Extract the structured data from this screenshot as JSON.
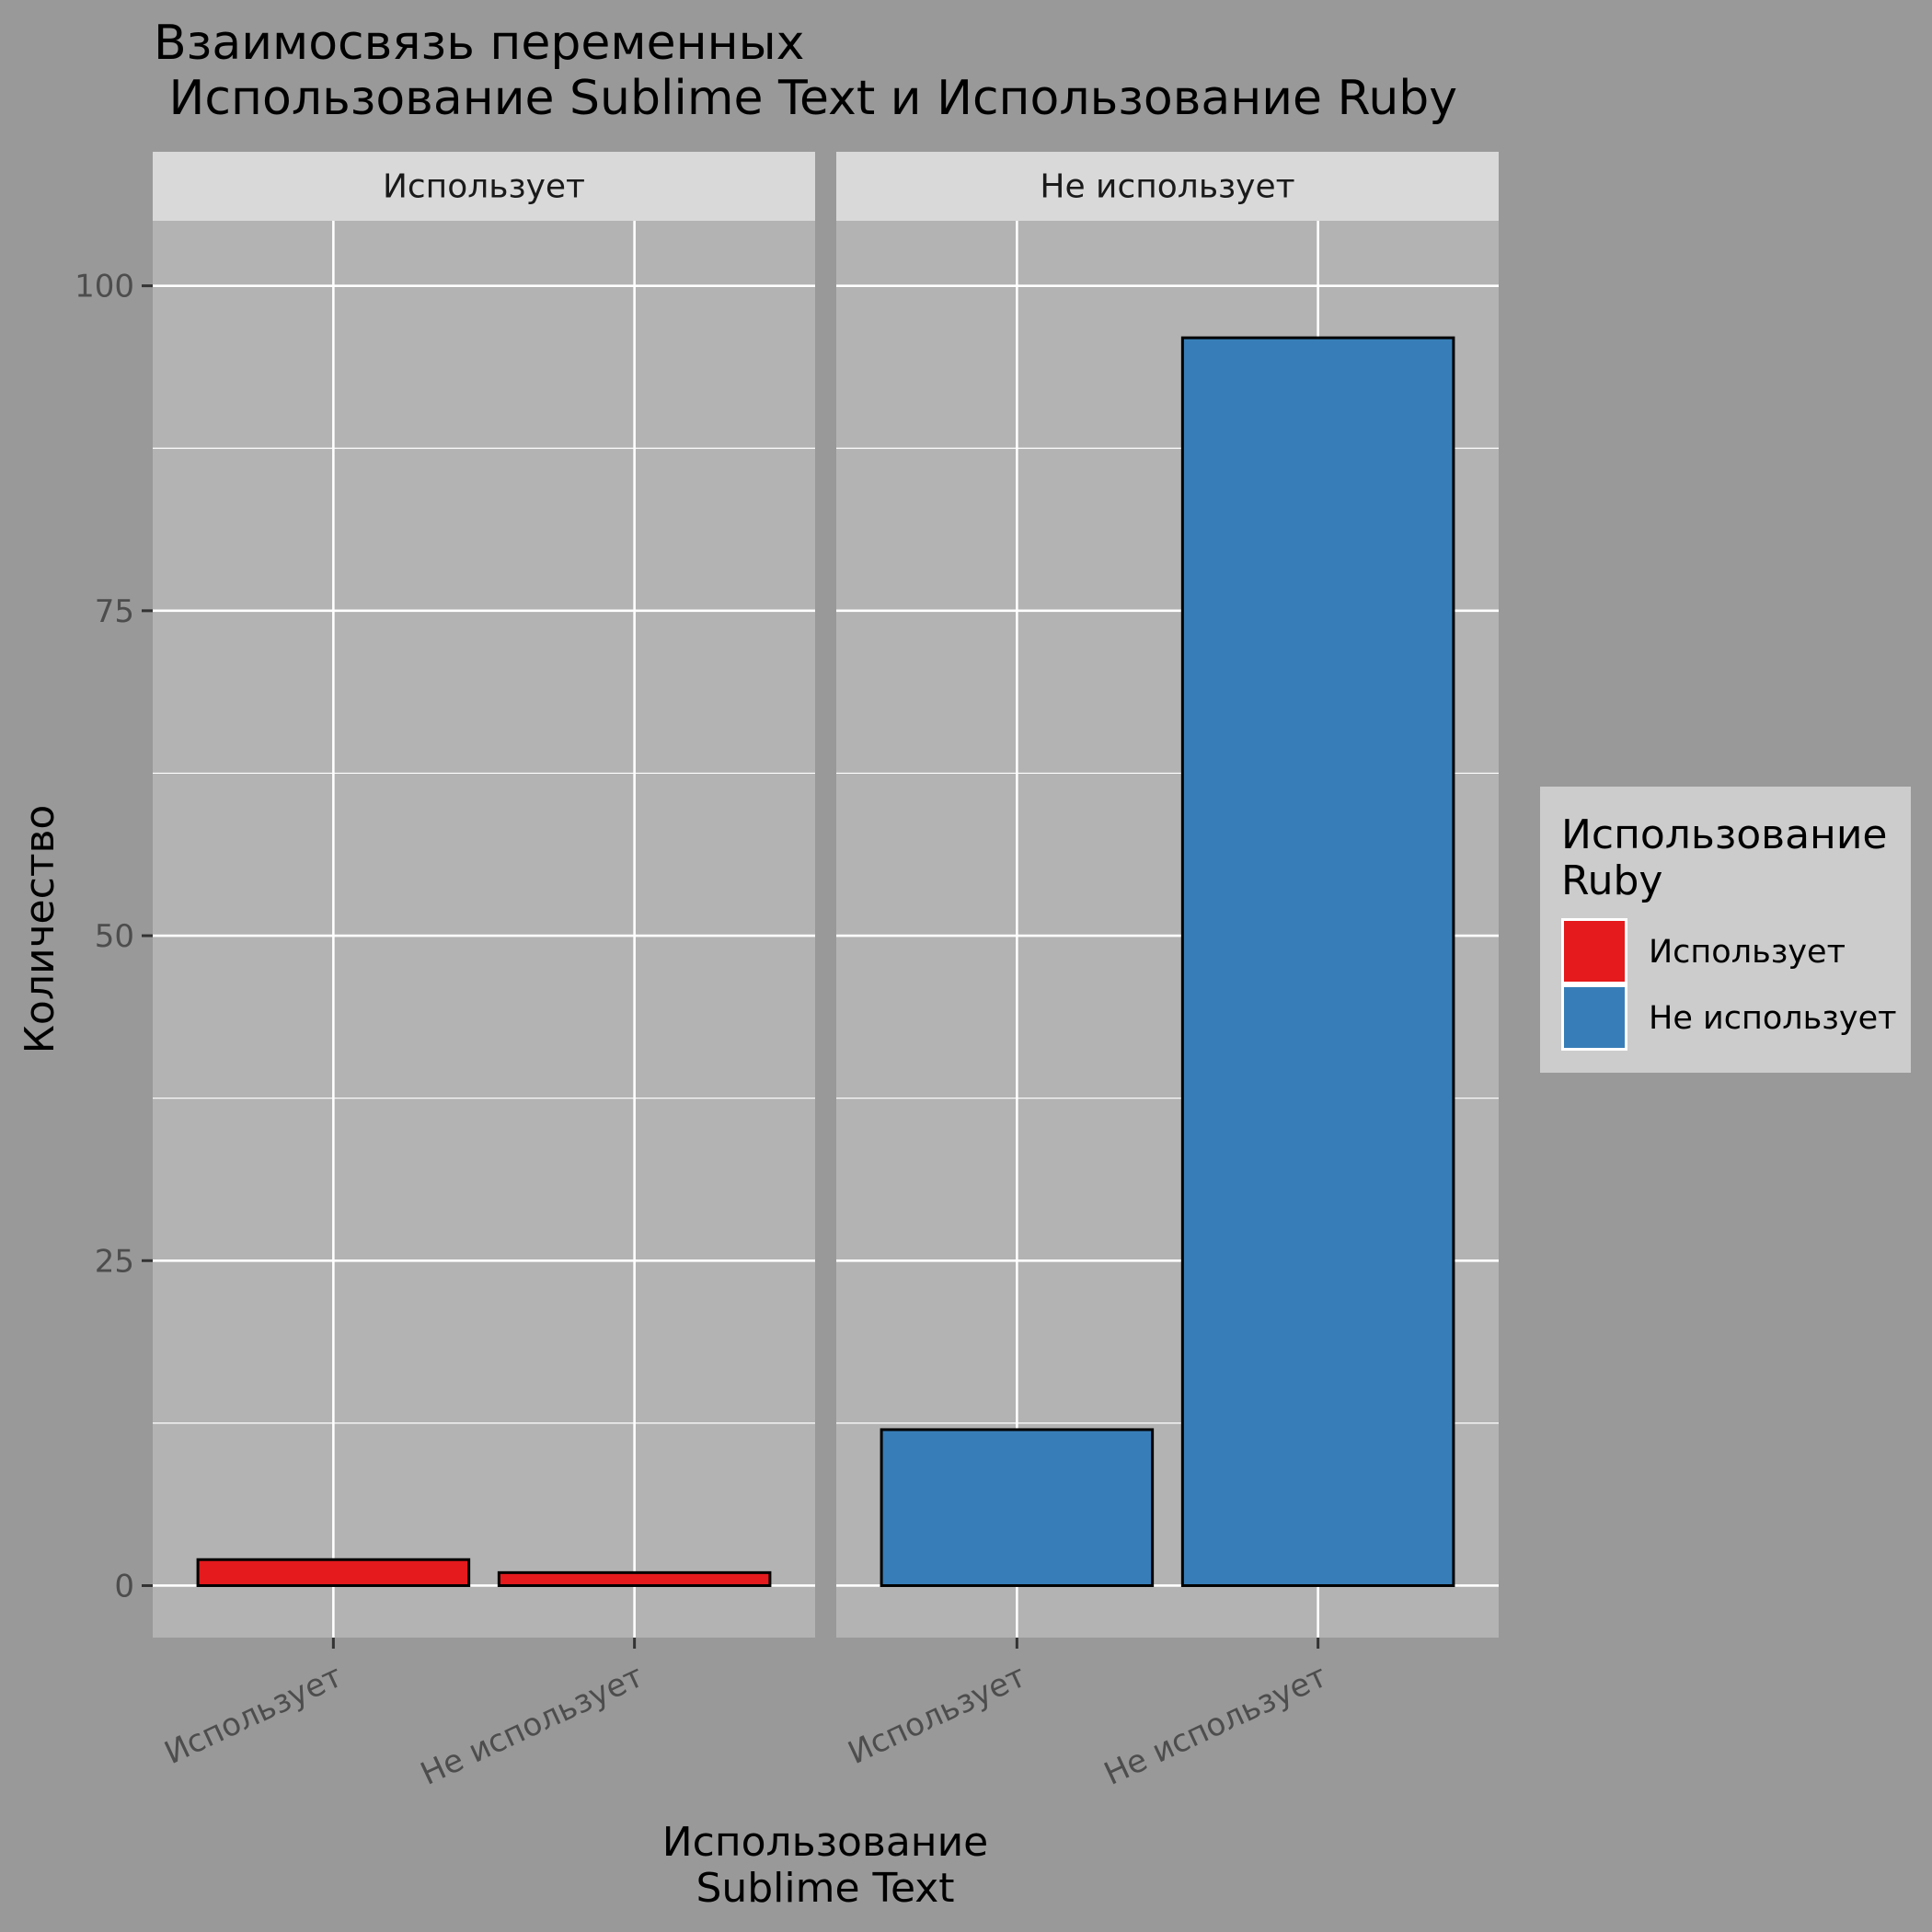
{
  "chart_data": {
    "type": "bar",
    "title_lines": [
      "Взаимосвязь переменных",
      " Использование Sublime Text и Использование Ruby"
    ],
    "xlabel_lines": [
      "Использование",
      "Sublime Text"
    ],
    "ylabel": "Количество",
    "ylim": [
      -4,
      105
    ],
    "yticks": [
      0,
      25,
      50,
      75,
      100
    ],
    "categories": [
      "Использует",
      "Не использует"
    ],
    "facets": [
      {
        "name": "Использует",
        "fill": "#E41A1C",
        "values": [
          2,
          1
        ]
      },
      {
        "name": "Не использует",
        "fill": "#377EB8",
        "values": [
          12,
          96
        ]
      }
    ],
    "legend": {
      "title_lines": [
        "Использование",
        "Ruby"
      ],
      "position": "right",
      "entries": [
        {
          "label": "Использует",
          "color": "#E41A1C"
        },
        {
          "label": "Не использует",
          "color": "#377EB8"
        }
      ]
    },
    "grid": true
  }
}
